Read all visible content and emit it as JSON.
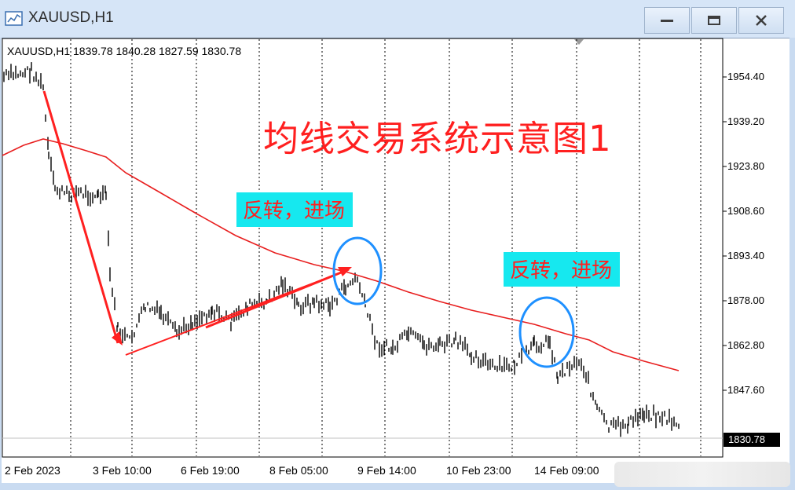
{
  "window": {
    "title": "XAUUSD,H1",
    "minimize_icon": "minimize-icon",
    "restore_icon": "restore-icon",
    "close_icon": "close-icon"
  },
  "chart_header": {
    "symbol_info": "XAUUSD,H1  1839.78 1840.28 1827.59 1830.78"
  },
  "price_axis": {
    "labels": [
      "1954.40",
      "1939.20",
      "1923.80",
      "1908.60",
      "1893.40",
      "1878.00",
      "1862.80",
      "1847.60"
    ],
    "last_price": "1830.78"
  },
  "time_axis": {
    "labels": [
      "2 Feb 2023",
      "3 Feb 10:00",
      "6 Feb 19:00",
      "8 Feb 05:00",
      "9 Feb 14:00",
      "10 Feb 23:00",
      "14 Feb 09:00"
    ]
  },
  "annotations": {
    "title": "均线交易系统示意图1",
    "note_1": "反转，进场",
    "note_2": "反转，进场"
  },
  "colors": {
    "moving_average": "#e81e1e",
    "annotation_text": "#ff1f1f",
    "annotation_bg": "#16e8ef",
    "circle": "#1e90ff",
    "candles": "#000000"
  }
}
